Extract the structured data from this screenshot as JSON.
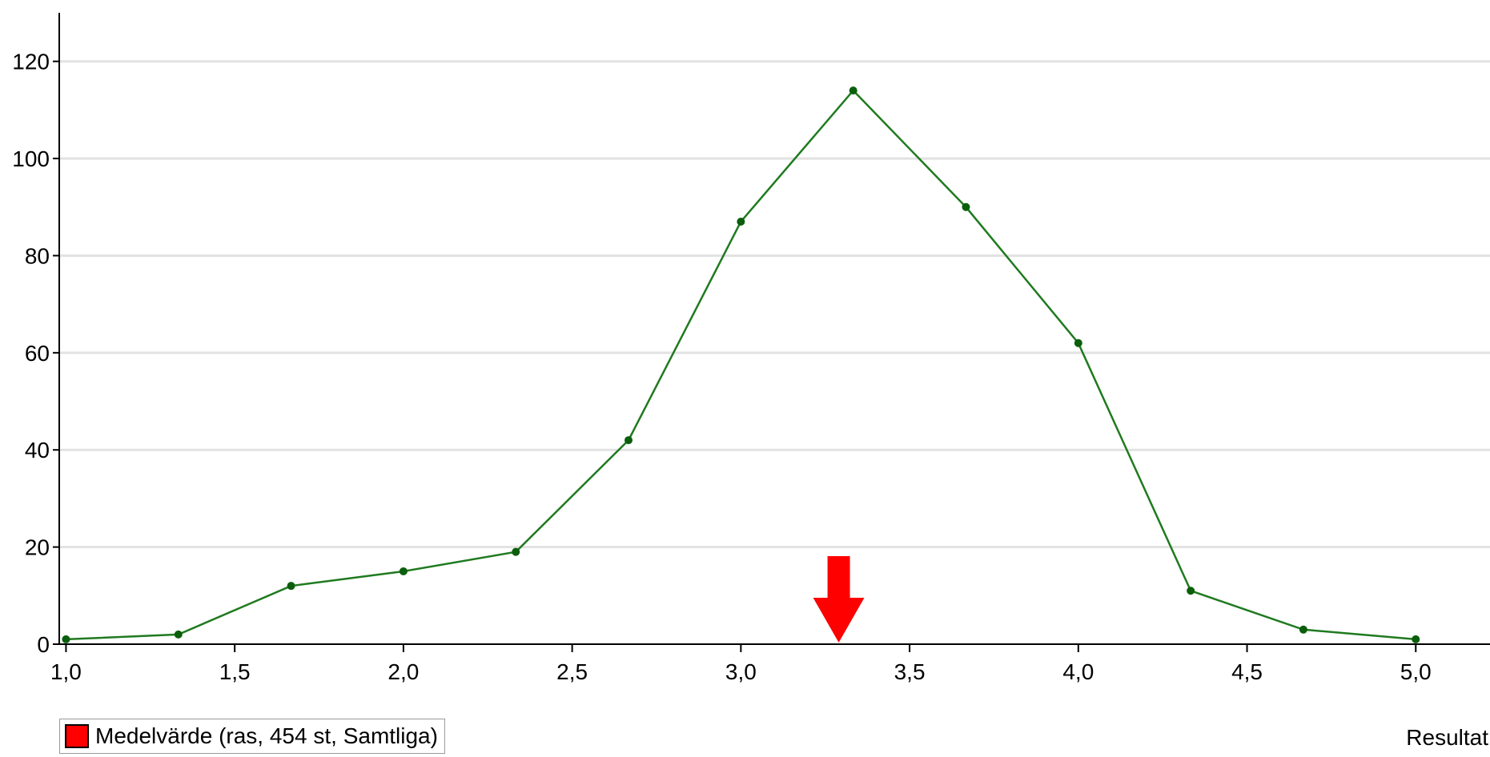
{
  "chart_data": {
    "type": "line",
    "xlabel": "Resultat",
    "ylabel": "",
    "title": "",
    "xlim": [
      0.98,
      5.22
    ],
    "ylim": [
      0,
      130
    ],
    "x_ticks": [
      1.0,
      1.5,
      2.0,
      2.5,
      3.0,
      3.5,
      4.0,
      4.5,
      5.0
    ],
    "x_tick_labels": [
      "1,0",
      "1,5",
      "2,0",
      "2,5",
      "3,0",
      "3,5",
      "4,0",
      "4,5",
      "5,0"
    ],
    "y_ticks": [
      0,
      20,
      40,
      60,
      80,
      100,
      120
    ],
    "y_tick_labels": [
      "0",
      "20",
      "40",
      "60",
      "80",
      "100",
      "120"
    ],
    "grid": "horizontal",
    "series": [
      {
        "color": "#1f7a1f",
        "x": [
          1.0,
          1.333,
          1.667,
          2.0,
          2.333,
          2.667,
          3.0,
          3.333,
          3.667,
          4.0,
          4.333,
          4.667,
          5.0
        ],
        "values": [
          1,
          2,
          12,
          15,
          19,
          42,
          87,
          114,
          90,
          62,
          11,
          3,
          1
        ]
      }
    ],
    "marker": {
      "type": "down-arrow",
      "x": 3.29,
      "color": "#ff0000"
    },
    "legend": {
      "position": "bottom-left",
      "entries": [
        {
          "label": "Medelvärde (ras, 454 st, Samtliga)",
          "color": "#ff0000"
        }
      ]
    }
  }
}
